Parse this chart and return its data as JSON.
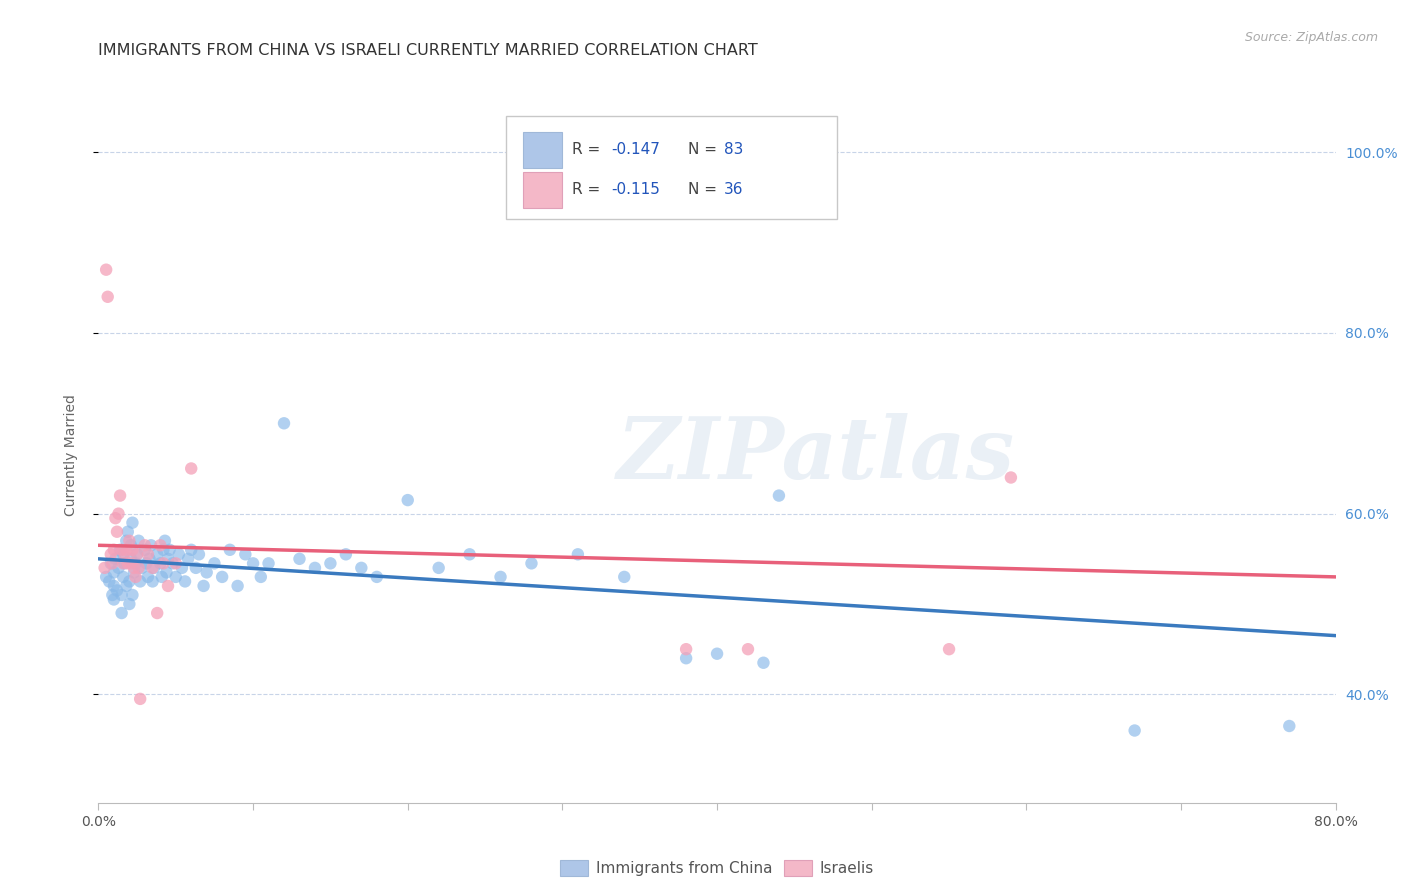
{
  "title": "IMMIGRANTS FROM CHINA VS ISRAELI CURRENTLY MARRIED CORRELATION CHART",
  "source": "Source: ZipAtlas.com",
  "ylabel": "Currently Married",
  "watermark": "ZIPatlas",
  "legend_blue_color": "#aec6e8",
  "legend_pink_color": "#f4b8c8",
  "scatter_blue_color": "#88b8e8",
  "scatter_pink_color": "#f4a0b8",
  "line_blue_color": "#3a7abf",
  "line_pink_color": "#e8607a",
  "xlim": [
    0.0,
    0.8
  ],
  "ylim": [
    0.28,
    1.05
  ],
  "xticks": [
    0.0,
    0.1,
    0.2,
    0.3,
    0.4,
    0.5,
    0.6,
    0.7,
    0.8
  ],
  "xtick_labels": [
    "0.0%",
    "",
    "",
    "",
    "",
    "",
    "",
    "",
    "80.0%"
  ],
  "yticks_right": [
    0.4,
    0.6,
    0.8,
    1.0
  ],
  "ytick_right_labels": [
    "40.0%",
    "60.0%",
    "80.0%",
    "100.0%"
  ],
  "background_color": "#ffffff",
  "grid_color": "#c8d4e8",
  "blue_scatter_x": [
    0.005,
    0.007,
    0.008,
    0.009,
    0.01,
    0.01,
    0.01,
    0.011,
    0.012,
    0.013,
    0.014,
    0.015,
    0.015,
    0.016,
    0.016,
    0.017,
    0.018,
    0.018,
    0.019,
    0.02,
    0.02,
    0.021,
    0.021,
    0.022,
    0.022,
    0.023,
    0.024,
    0.025,
    0.026,
    0.027,
    0.028,
    0.03,
    0.031,
    0.032,
    0.033,
    0.034,
    0.035,
    0.036,
    0.038,
    0.04,
    0.041,
    0.042,
    0.043,
    0.044,
    0.045,
    0.046,
    0.048,
    0.05,
    0.052,
    0.054,
    0.056,
    0.058,
    0.06,
    0.063,
    0.065,
    0.068,
    0.07,
    0.075,
    0.08,
    0.085,
    0.09,
    0.095,
    0.1,
    0.105,
    0.11,
    0.12,
    0.13,
    0.14,
    0.15,
    0.16,
    0.17,
    0.18,
    0.2,
    0.22,
    0.24,
    0.26,
    0.28,
    0.31,
    0.34,
    0.38,
    0.4,
    0.43,
    0.44,
    0.67,
    0.77
  ],
  "blue_scatter_y": [
    0.53,
    0.525,
    0.545,
    0.51,
    0.505,
    0.52,
    0.535,
    0.55,
    0.515,
    0.54,
    0.56,
    0.49,
    0.51,
    0.53,
    0.555,
    0.545,
    0.52,
    0.57,
    0.58,
    0.5,
    0.525,
    0.55,
    0.565,
    0.51,
    0.59,
    0.535,
    0.545,
    0.555,
    0.57,
    0.525,
    0.54,
    0.56,
    0.545,
    0.53,
    0.55,
    0.565,
    0.525,
    0.54,
    0.555,
    0.545,
    0.53,
    0.56,
    0.57,
    0.535,
    0.55,
    0.56,
    0.545,
    0.53,
    0.555,
    0.54,
    0.525,
    0.55,
    0.56,
    0.54,
    0.555,
    0.52,
    0.535,
    0.545,
    0.53,
    0.56,
    0.52,
    0.555,
    0.545,
    0.53,
    0.545,
    0.7,
    0.55,
    0.54,
    0.545,
    0.555,
    0.54,
    0.53,
    0.615,
    0.54,
    0.555,
    0.53,
    0.545,
    0.555,
    0.53,
    0.44,
    0.445,
    0.435,
    0.62,
    0.36,
    0.365
  ],
  "pink_scatter_x": [
    0.004,
    0.005,
    0.006,
    0.008,
    0.009,
    0.01,
    0.011,
    0.012,
    0.013,
    0.014,
    0.015,
    0.016,
    0.017,
    0.018,
    0.019,
    0.02,
    0.021,
    0.022,
    0.023,
    0.024,
    0.025,
    0.026,
    0.027,
    0.03,
    0.032,
    0.035,
    0.038,
    0.04,
    0.042,
    0.045,
    0.05,
    0.06,
    0.38,
    0.42,
    0.55,
    0.59
  ],
  "pink_scatter_y": [
    0.54,
    0.87,
    0.84,
    0.555,
    0.545,
    0.56,
    0.595,
    0.58,
    0.6,
    0.62,
    0.56,
    0.545,
    0.555,
    0.56,
    0.545,
    0.57,
    0.545,
    0.56,
    0.54,
    0.53,
    0.555,
    0.54,
    0.395,
    0.565,
    0.555,
    0.54,
    0.49,
    0.565,
    0.545,
    0.52,
    0.545,
    0.65,
    0.45,
    0.45,
    0.45,
    0.64
  ],
  "blue_line_x": [
    0.0,
    0.8
  ],
  "blue_line_y": [
    0.55,
    0.465
  ],
  "pink_line_x": [
    0.0,
    0.8
  ],
  "pink_line_y": [
    0.565,
    0.53
  ]
}
